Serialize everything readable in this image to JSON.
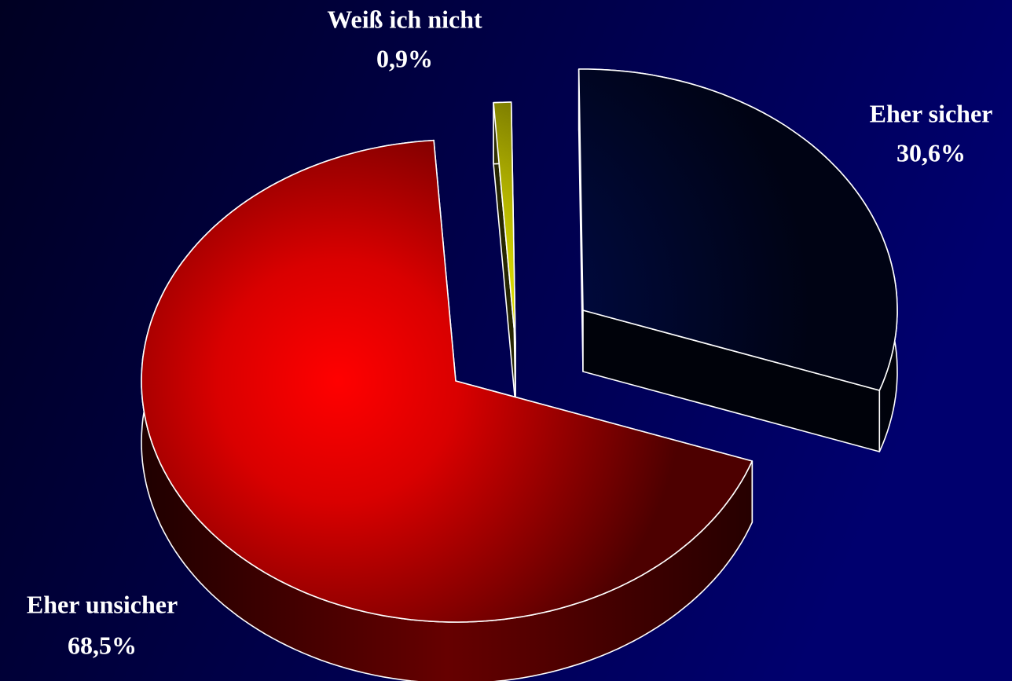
{
  "chart_data": {
    "type": "pie",
    "categories": [
      "Weiß ich nicht",
      "Eher sicher",
      "Eher unsicher"
    ],
    "values": [
      0.9,
      30.6,
      68.5
    ],
    "value_labels": [
      "0,9%",
      "30,6%",
      "68,5%"
    ],
    "colors": [
      "#ffff00",
      "#000a44",
      "#ff0000"
    ]
  }
}
